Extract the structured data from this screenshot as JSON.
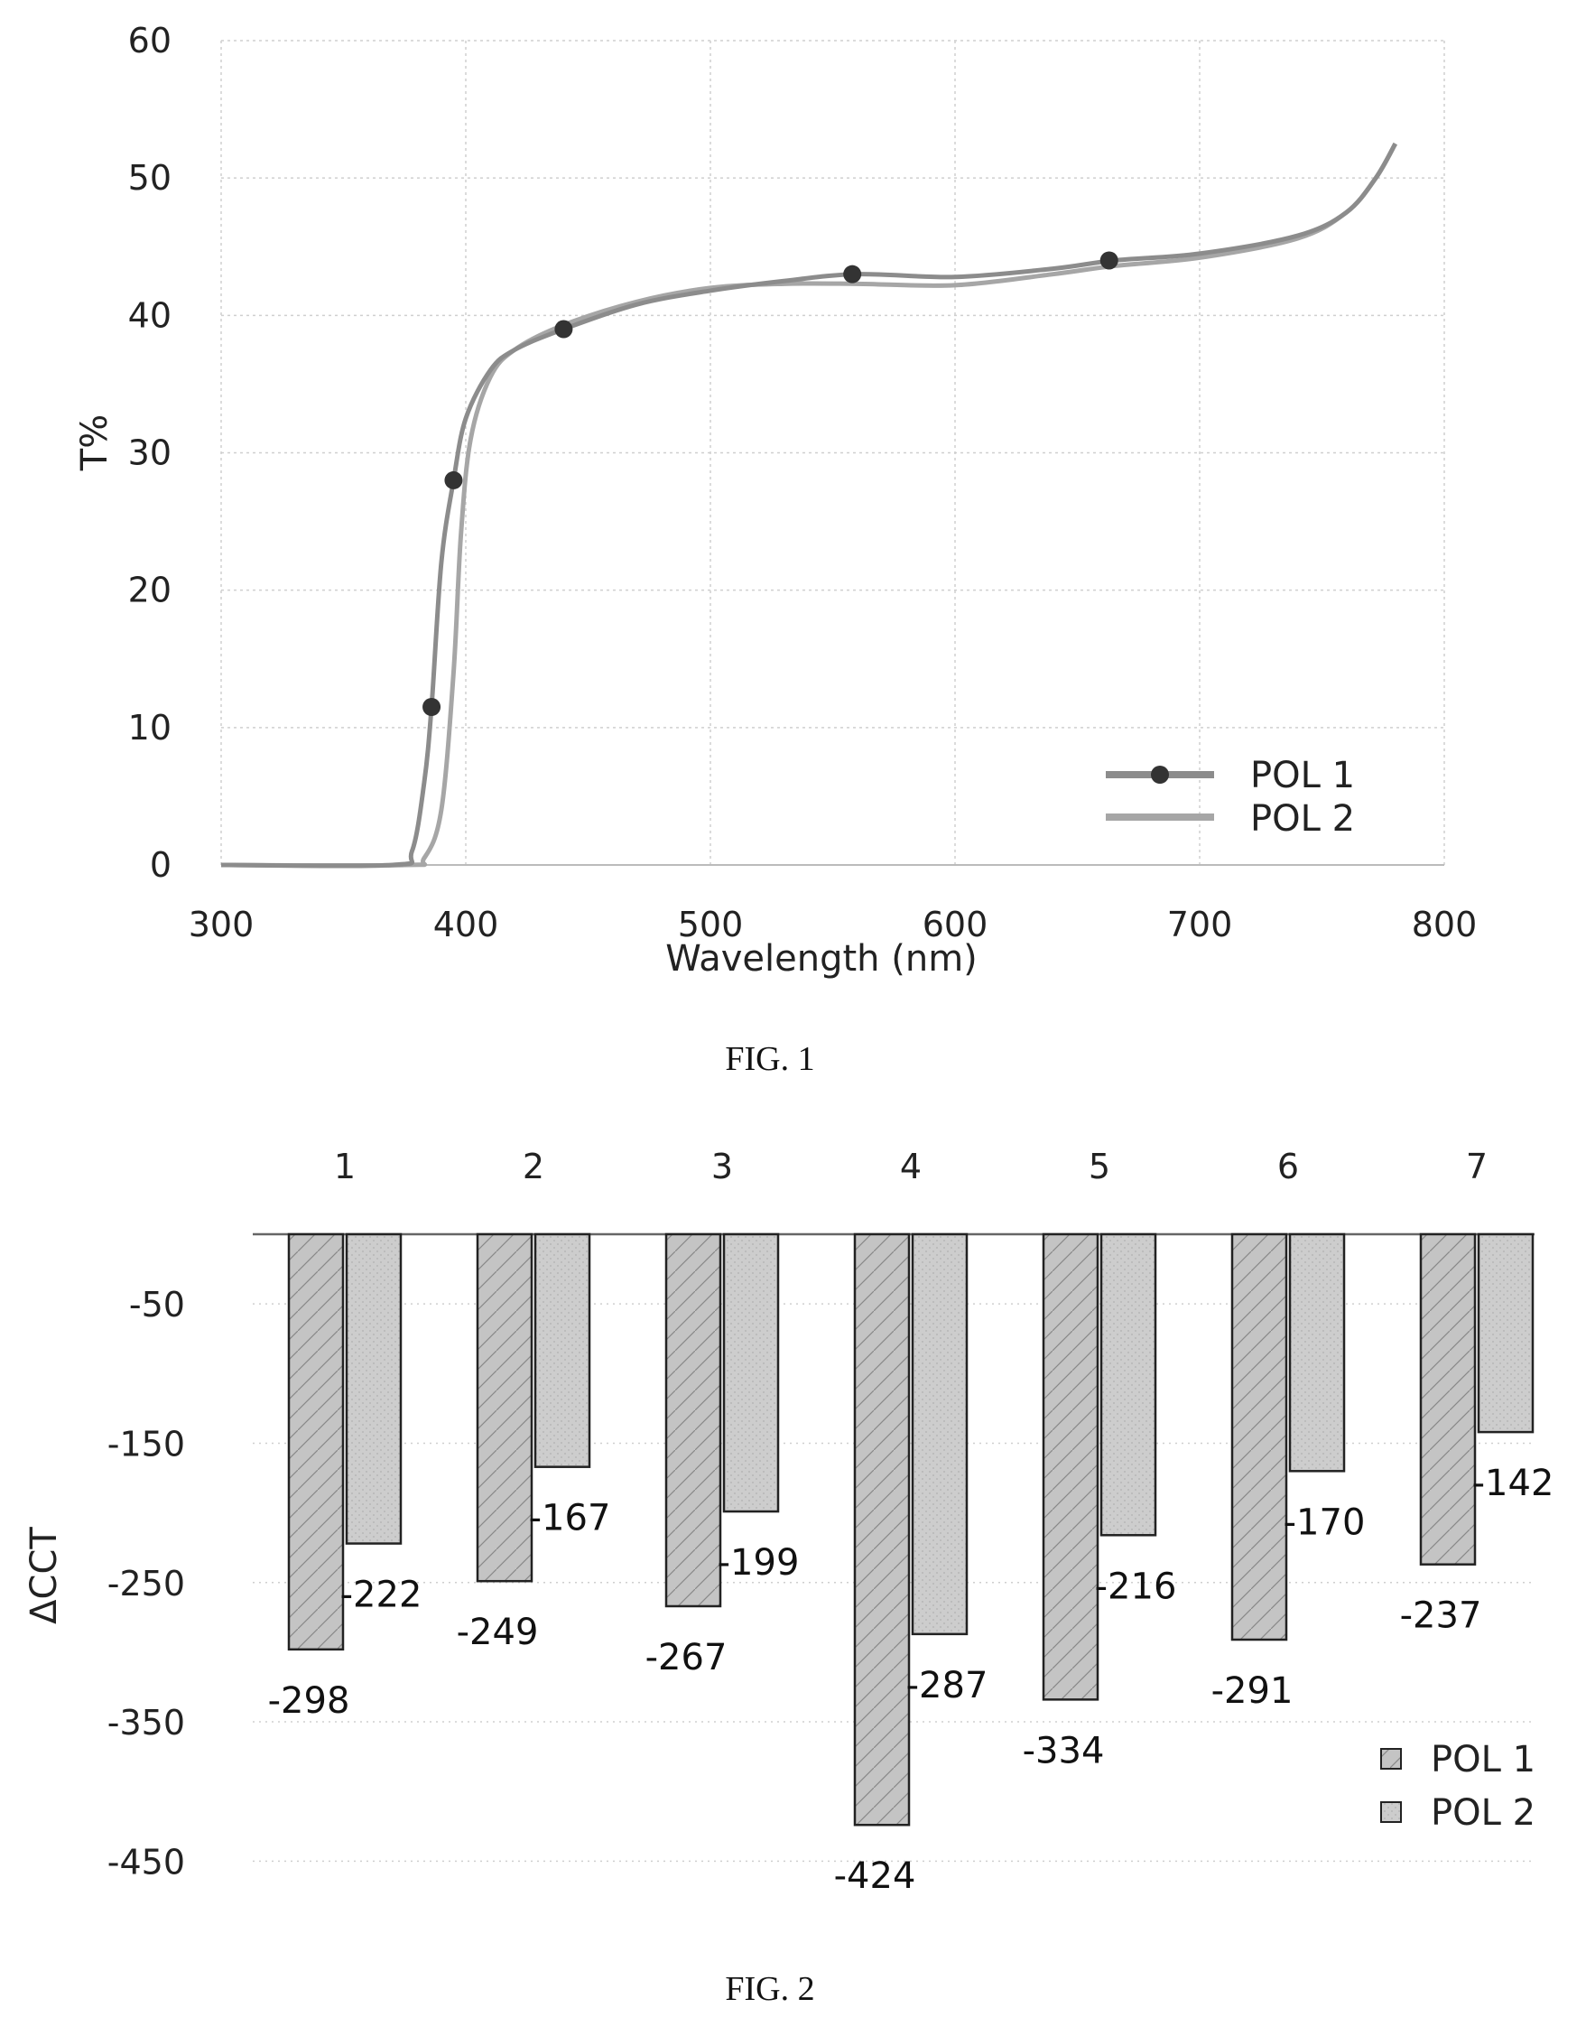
{
  "chart_data": [
    {
      "type": "line",
      "xlabel": "Wavelength (nm)",
      "ylabel": "T%",
      "xlim": [
        300,
        800
      ],
      "ylim": [
        0,
        60
      ],
      "x_ticks": [
        "300",
        "400",
        "500",
        "600",
        "700",
        "800"
      ],
      "y_ticks": [
        "0",
        "10",
        "20",
        "30",
        "40",
        "50",
        "60"
      ],
      "grid": true,
      "legend_position": "bottom-right",
      "caption": "FIG. 1",
      "series": [
        {
          "name": "POL 1",
          "marker": "circle",
          "color": "#8c8c8c",
          "x": [
            300,
            370,
            378,
            383,
            386,
            390,
            395,
            400,
            410,
            420,
            440,
            470,
            500,
            530,
            560,
            600,
            640,
            665,
            700,
            740,
            760,
            772,
            780
          ],
          "y": [
            0,
            0,
            1,
            6,
            11.5,
            22,
            28,
            32.5,
            36,
            37.5,
            39,
            40.8,
            41.8,
            42.5,
            43,
            42.8,
            43.4,
            44,
            44.5,
            45.8,
            47.5,
            50,
            52.5
          ],
          "marker_points": {
            "x": [
              386,
              395,
              440,
              558,
              663
            ],
            "y": [
              11.5,
              28,
              39,
              43,
              44
            ]
          }
        },
        {
          "name": "POL 2",
          "color": "#a6a6a6",
          "x": [
            300,
            375,
            383,
            390,
            395,
            398,
            402,
            410,
            420,
            440,
            470,
            500,
            530,
            560,
            600,
            640,
            665,
            700,
            740,
            760,
            772,
            780
          ],
          "y": [
            0,
            0,
            0.5,
            4,
            14,
            24,
            31,
            35.5,
            37.5,
            39.3,
            41,
            42,
            42.3,
            42.3,
            42.2,
            43,
            43.6,
            44.2,
            45.6,
            47.5,
            50,
            52.5
          ]
        }
      ]
    },
    {
      "type": "bar",
      "ylabel": "ΔCCT",
      "categories": [
        "1",
        "2",
        "3",
        "4",
        "5",
        "6",
        "7"
      ],
      "y_ticks": [
        "-50",
        "-150",
        "-250",
        "-350",
        "-450"
      ],
      "ylim": [
        -450,
        0
      ],
      "grid": true,
      "legend_position": "bottom-right",
      "caption": "FIG. 2",
      "series": [
        {
          "name": "POL 1",
          "values": [
            -298,
            -249,
            -267,
            -424,
            -334,
            -291,
            -237
          ],
          "labels": [
            "-298",
            "-249",
            "-267",
            "-424",
            "-334",
            "-291",
            "-237"
          ],
          "pattern": "hatched",
          "color": "#bdbdbd"
        },
        {
          "name": "POL 2",
          "values": [
            -222,
            -167,
            -199,
            -287,
            -216,
            -170,
            -142
          ],
          "labels": [
            "-222",
            "-167",
            "-199",
            "-287",
            "-216",
            "-170",
            "-142"
          ],
          "pattern": "solid",
          "color": "#cfcfcf"
        }
      ]
    }
  ]
}
